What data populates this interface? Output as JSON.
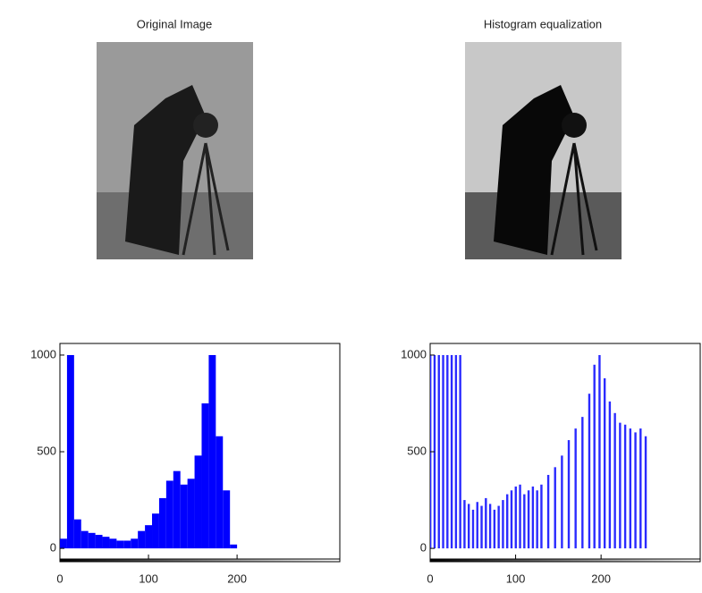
{
  "chart_data": [
    {
      "type": "image",
      "title": "Original Image"
    },
    {
      "type": "image",
      "title": "Histogram equalization"
    },
    {
      "type": "histogram",
      "x": [
        0,
        8,
        16,
        24,
        32,
        40,
        48,
        56,
        64,
        72,
        80,
        88,
        96,
        104,
        112,
        120,
        128,
        136,
        144,
        152,
        160,
        168,
        176,
        184,
        192,
        200,
        208,
        216,
        224,
        232,
        240,
        248
      ],
      "values": [
        50,
        1000,
        150,
        90,
        80,
        70,
        60,
        50,
        40,
        40,
        50,
        90,
        120,
        180,
        260,
        350,
        400,
        330,
        360,
        480,
        750,
        1000,
        580,
        300,
        20,
        0,
        0,
        0,
        0,
        0,
        0,
        0
      ],
      "color": "#0000ff",
      "xlim": [
        0,
        316
      ],
      "ylim": [
        -55,
        1060
      ],
      "xticks": [
        0,
        100,
        200
      ],
      "yticks": [
        0,
        500,
        1000
      ]
    },
    {
      "type": "stem",
      "x": [
        0,
        5,
        10,
        15,
        20,
        25,
        30,
        35,
        40,
        45,
        50,
        55,
        60,
        65,
        70,
        75,
        80,
        85,
        90,
        95,
        100,
        105,
        110,
        115,
        120,
        125,
        130,
        138,
        146,
        154,
        162,
        170,
        178,
        186,
        192,
        198,
        204,
        210,
        216,
        222,
        228,
        234,
        240,
        246,
        252
      ],
      "values": [
        1000,
        1000,
        1000,
        1000,
        1000,
        1000,
        1000,
        1000,
        250,
        230,
        200,
        240,
        220,
        260,
        230,
        200,
        220,
        250,
        280,
        300,
        320,
        330,
        280,
        300,
        320,
        300,
        330,
        380,
        420,
        480,
        560,
        620,
        680,
        800,
        950,
        1000,
        880,
        760,
        700,
        650,
        640,
        620,
        600,
        620,
        580
      ],
      "color": "#2a2aff",
      "xlim": [
        0,
        316
      ],
      "ylim": [
        -55,
        1060
      ],
      "xticks": [
        0,
        100,
        200
      ],
      "yticks": [
        0,
        500,
        1000
      ]
    }
  ]
}
